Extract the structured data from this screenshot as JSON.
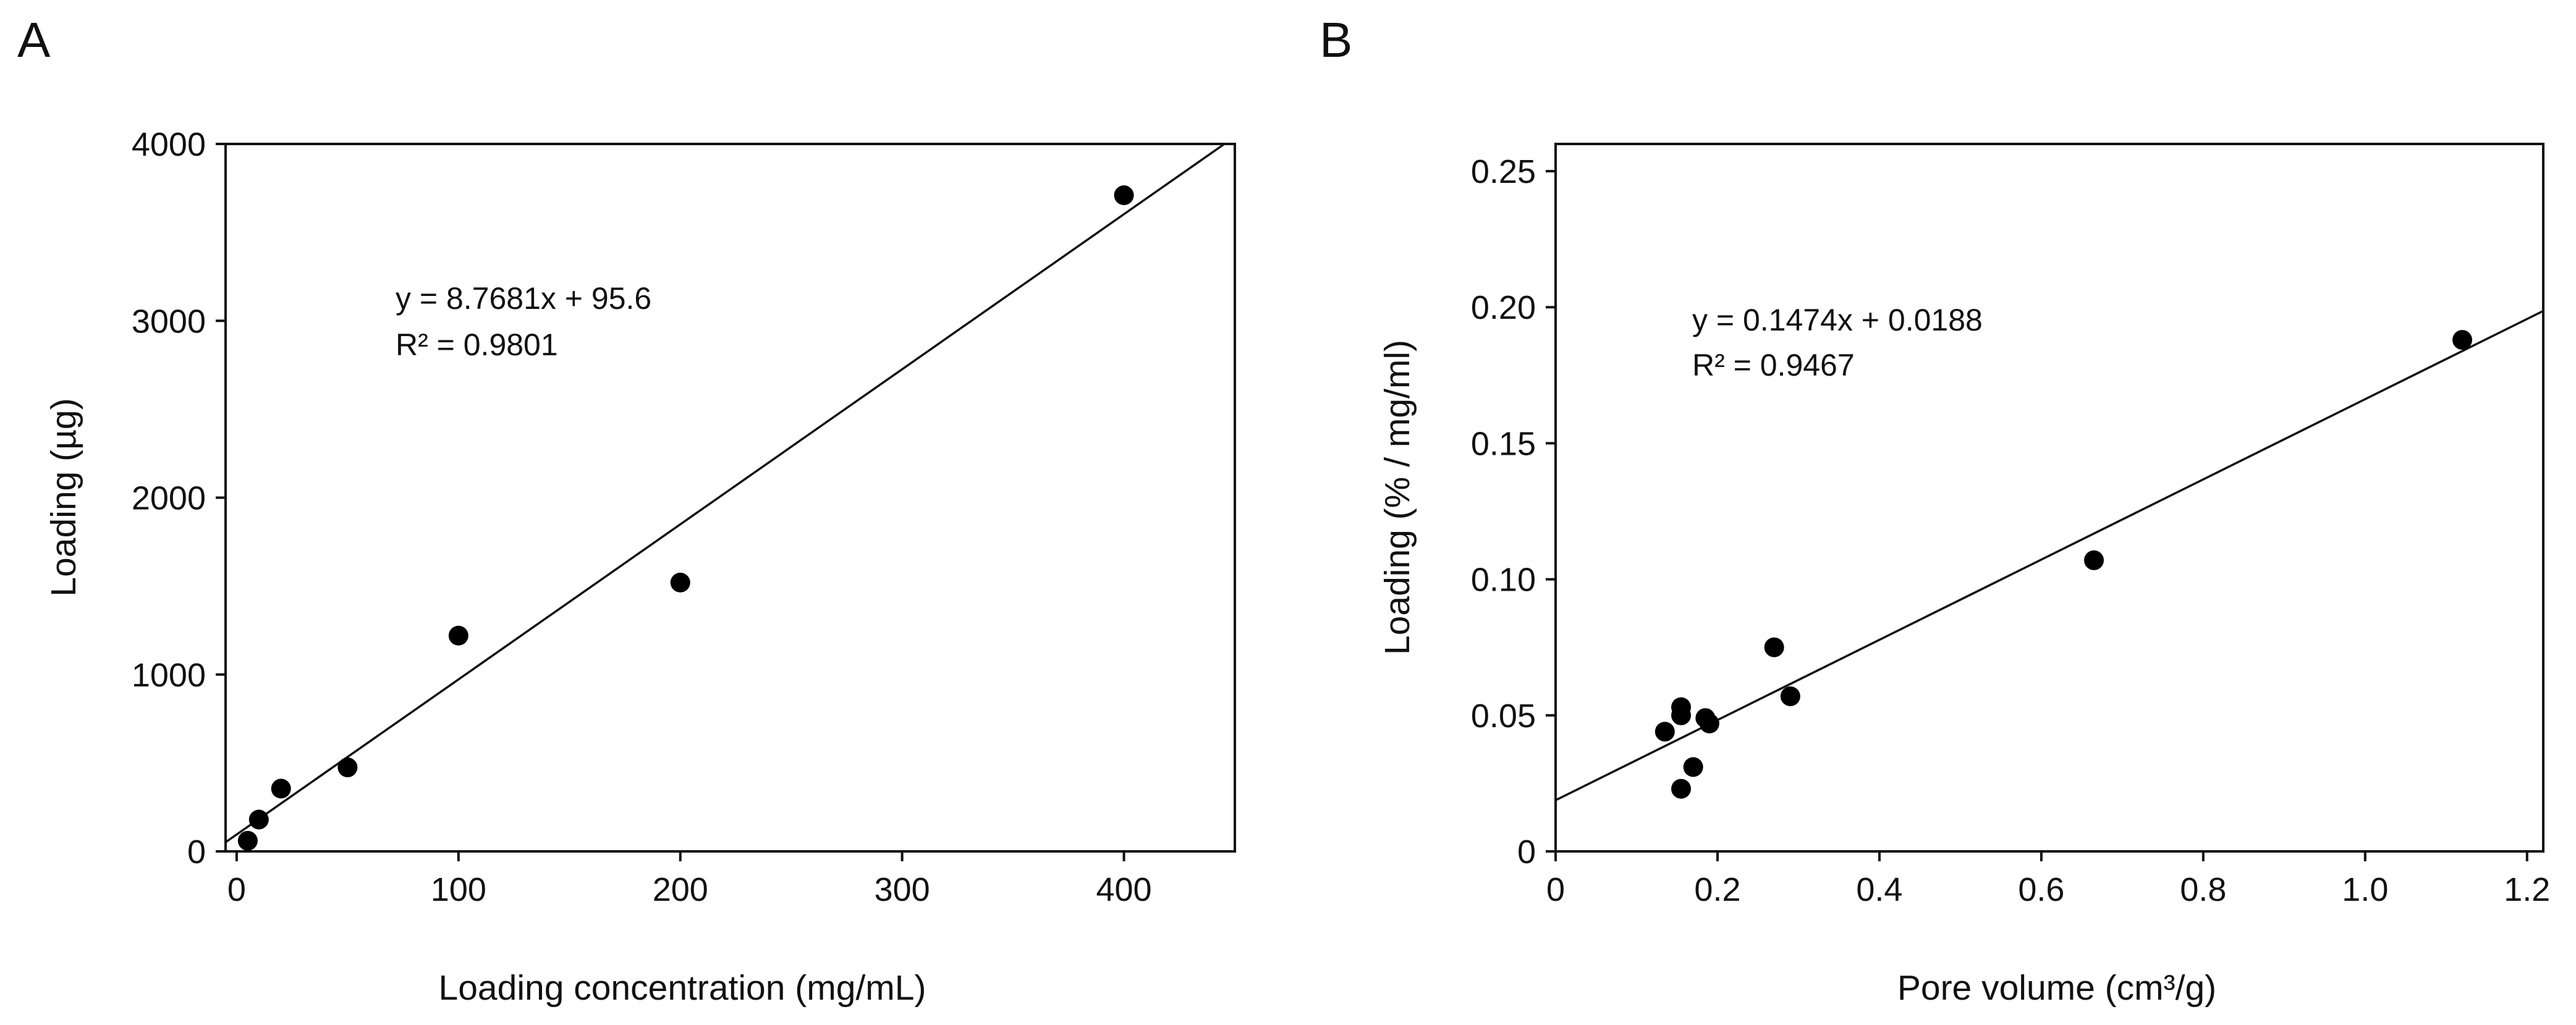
{
  "chart_data": [
    {
      "panel": "A",
      "type": "scatter",
      "title": "",
      "xlabel": "Loading concentration (mg/mL)",
      "ylabel": "Loading (µg)",
      "xlim": [
        -5,
        450
      ],
      "ylim": [
        0,
        4000
      ],
      "xticks": [
        0,
        100,
        200,
        300,
        400
      ],
      "yticks": [
        0,
        1000,
        2000,
        3000,
        4000
      ],
      "grid": false,
      "points": [
        {
          "x": 5,
          "y": 60
        },
        {
          "x": 10,
          "y": 180
        },
        {
          "x": 20,
          "y": 355
        },
        {
          "x": 50,
          "y": 475
        },
        {
          "x": 100,
          "y": 1220
        },
        {
          "x": 200,
          "y": 1520
        },
        {
          "x": 400,
          "y": 3710
        }
      ],
      "trendline": {
        "slope": 8.7681,
        "intercept": 95.6
      },
      "equation_line1": "y = 8.7681x + 95.6",
      "equation_line2": "R² = 0.9801"
    },
    {
      "panel": "B",
      "type": "scatter",
      "title": "",
      "xlabel": "Pore volume (cm³/g)",
      "ylabel": "Loading (% / mg/ml)",
      "xlim": [
        0,
        1.22
      ],
      "ylim": [
        0,
        0.26
      ],
      "xticks": [
        0,
        0.2,
        0.4,
        0.6,
        0.8,
        1.0,
        1.2
      ],
      "xtick_labels": [
        "0",
        "0.2",
        "0.4",
        "0.6",
        "0.8",
        "1.0",
        "1.2"
      ],
      "yticks": [
        0,
        0.05,
        0.1,
        0.15,
        0.2,
        0.25
      ],
      "ytick_labels": [
        "0",
        "0.05",
        "0.10",
        "0.15",
        "0.20",
        "0.25"
      ],
      "grid": false,
      "points": [
        {
          "x": 0.135,
          "y": 0.044
        },
        {
          "x": 0.155,
          "y": 0.05
        },
        {
          "x": 0.155,
          "y": 0.053
        },
        {
          "x": 0.155,
          "y": 0.023
        },
        {
          "x": 0.17,
          "y": 0.031
        },
        {
          "x": 0.185,
          "y": 0.049
        },
        {
          "x": 0.19,
          "y": 0.047
        },
        {
          "x": 0.27,
          "y": 0.075
        },
        {
          "x": 0.29,
          "y": 0.057
        },
        {
          "x": 0.665,
          "y": 0.107
        },
        {
          "x": 1.12,
          "y": 0.188
        }
      ],
      "trendline": {
        "slope": 0.1474,
        "intercept": 0.0188
      },
      "equation_line1": "y = 0.1474x + 0.0188",
      "equation_line2": "R² = 0.9467"
    }
  ]
}
